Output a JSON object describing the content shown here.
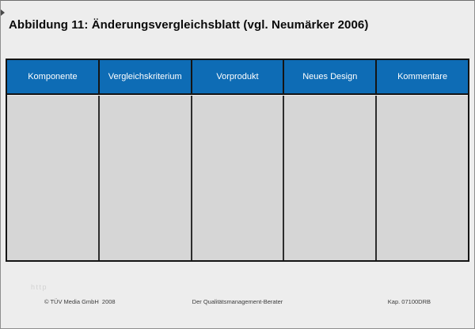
{
  "page": {
    "title": "Abbildung 11: Änderungsvergleichsblatt (vgl. Neumärker 2006)"
  },
  "table": {
    "columns": [
      "Komponente",
      "Vergleichskriterium",
      "Vorprodukt",
      "Neues Design",
      "Kommentare"
    ],
    "header_bg": "#0e6cb5",
    "header_text_color": "#ffffff",
    "body_bg": "#d6d6d6",
    "border_color": "#141414"
  },
  "watermark": "http",
  "footer": {
    "left": "© TÜV Media GmbH  2008",
    "center": "Der Qualitätsmanagement-Berater",
    "right": "Kap. 07100DRB"
  }
}
